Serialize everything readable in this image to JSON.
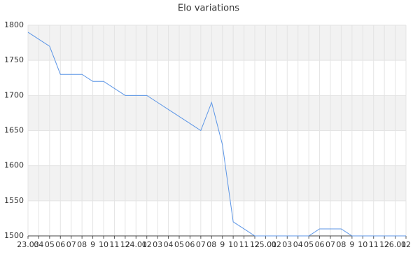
{
  "chart_data": {
    "type": "line",
    "title": "Elo variations",
    "categories": [
      "23.03",
      "04",
      "05",
      "06",
      "07",
      "08",
      "9",
      "10",
      "11",
      "12",
      "24.01",
      "02",
      "03",
      "04",
      "05",
      "06",
      "07",
      "08",
      "9",
      "10",
      "11",
      "12",
      "25.01",
      "02",
      "03",
      "04",
      "05",
      "06",
      "07",
      "08",
      "9",
      "10",
      "11",
      "12",
      "26.01",
      "02"
    ],
    "values": [
      1790,
      1780,
      1770,
      1730,
      1730,
      1730,
      1720,
      1720,
      1710,
      1700,
      1700,
      1700,
      1690,
      1680,
      1670,
      1660,
      1650,
      1690,
      1630,
      1520,
      1510,
      1500,
      1500,
      1500,
      1500,
      1500,
      1500,
      1510,
      1510,
      1510,
      1500,
      1500,
      1500,
      1500,
      1500,
      1500
    ],
    "color": "#5b95e6",
    "ylim": [
      1500,
      1800
    ],
    "yticks": [
      1500,
      1550,
      1600,
      1650,
      1700,
      1750,
      1800
    ],
    "grid": true,
    "alternate_bands": true,
    "band_color": "#f2f2f2"
  }
}
